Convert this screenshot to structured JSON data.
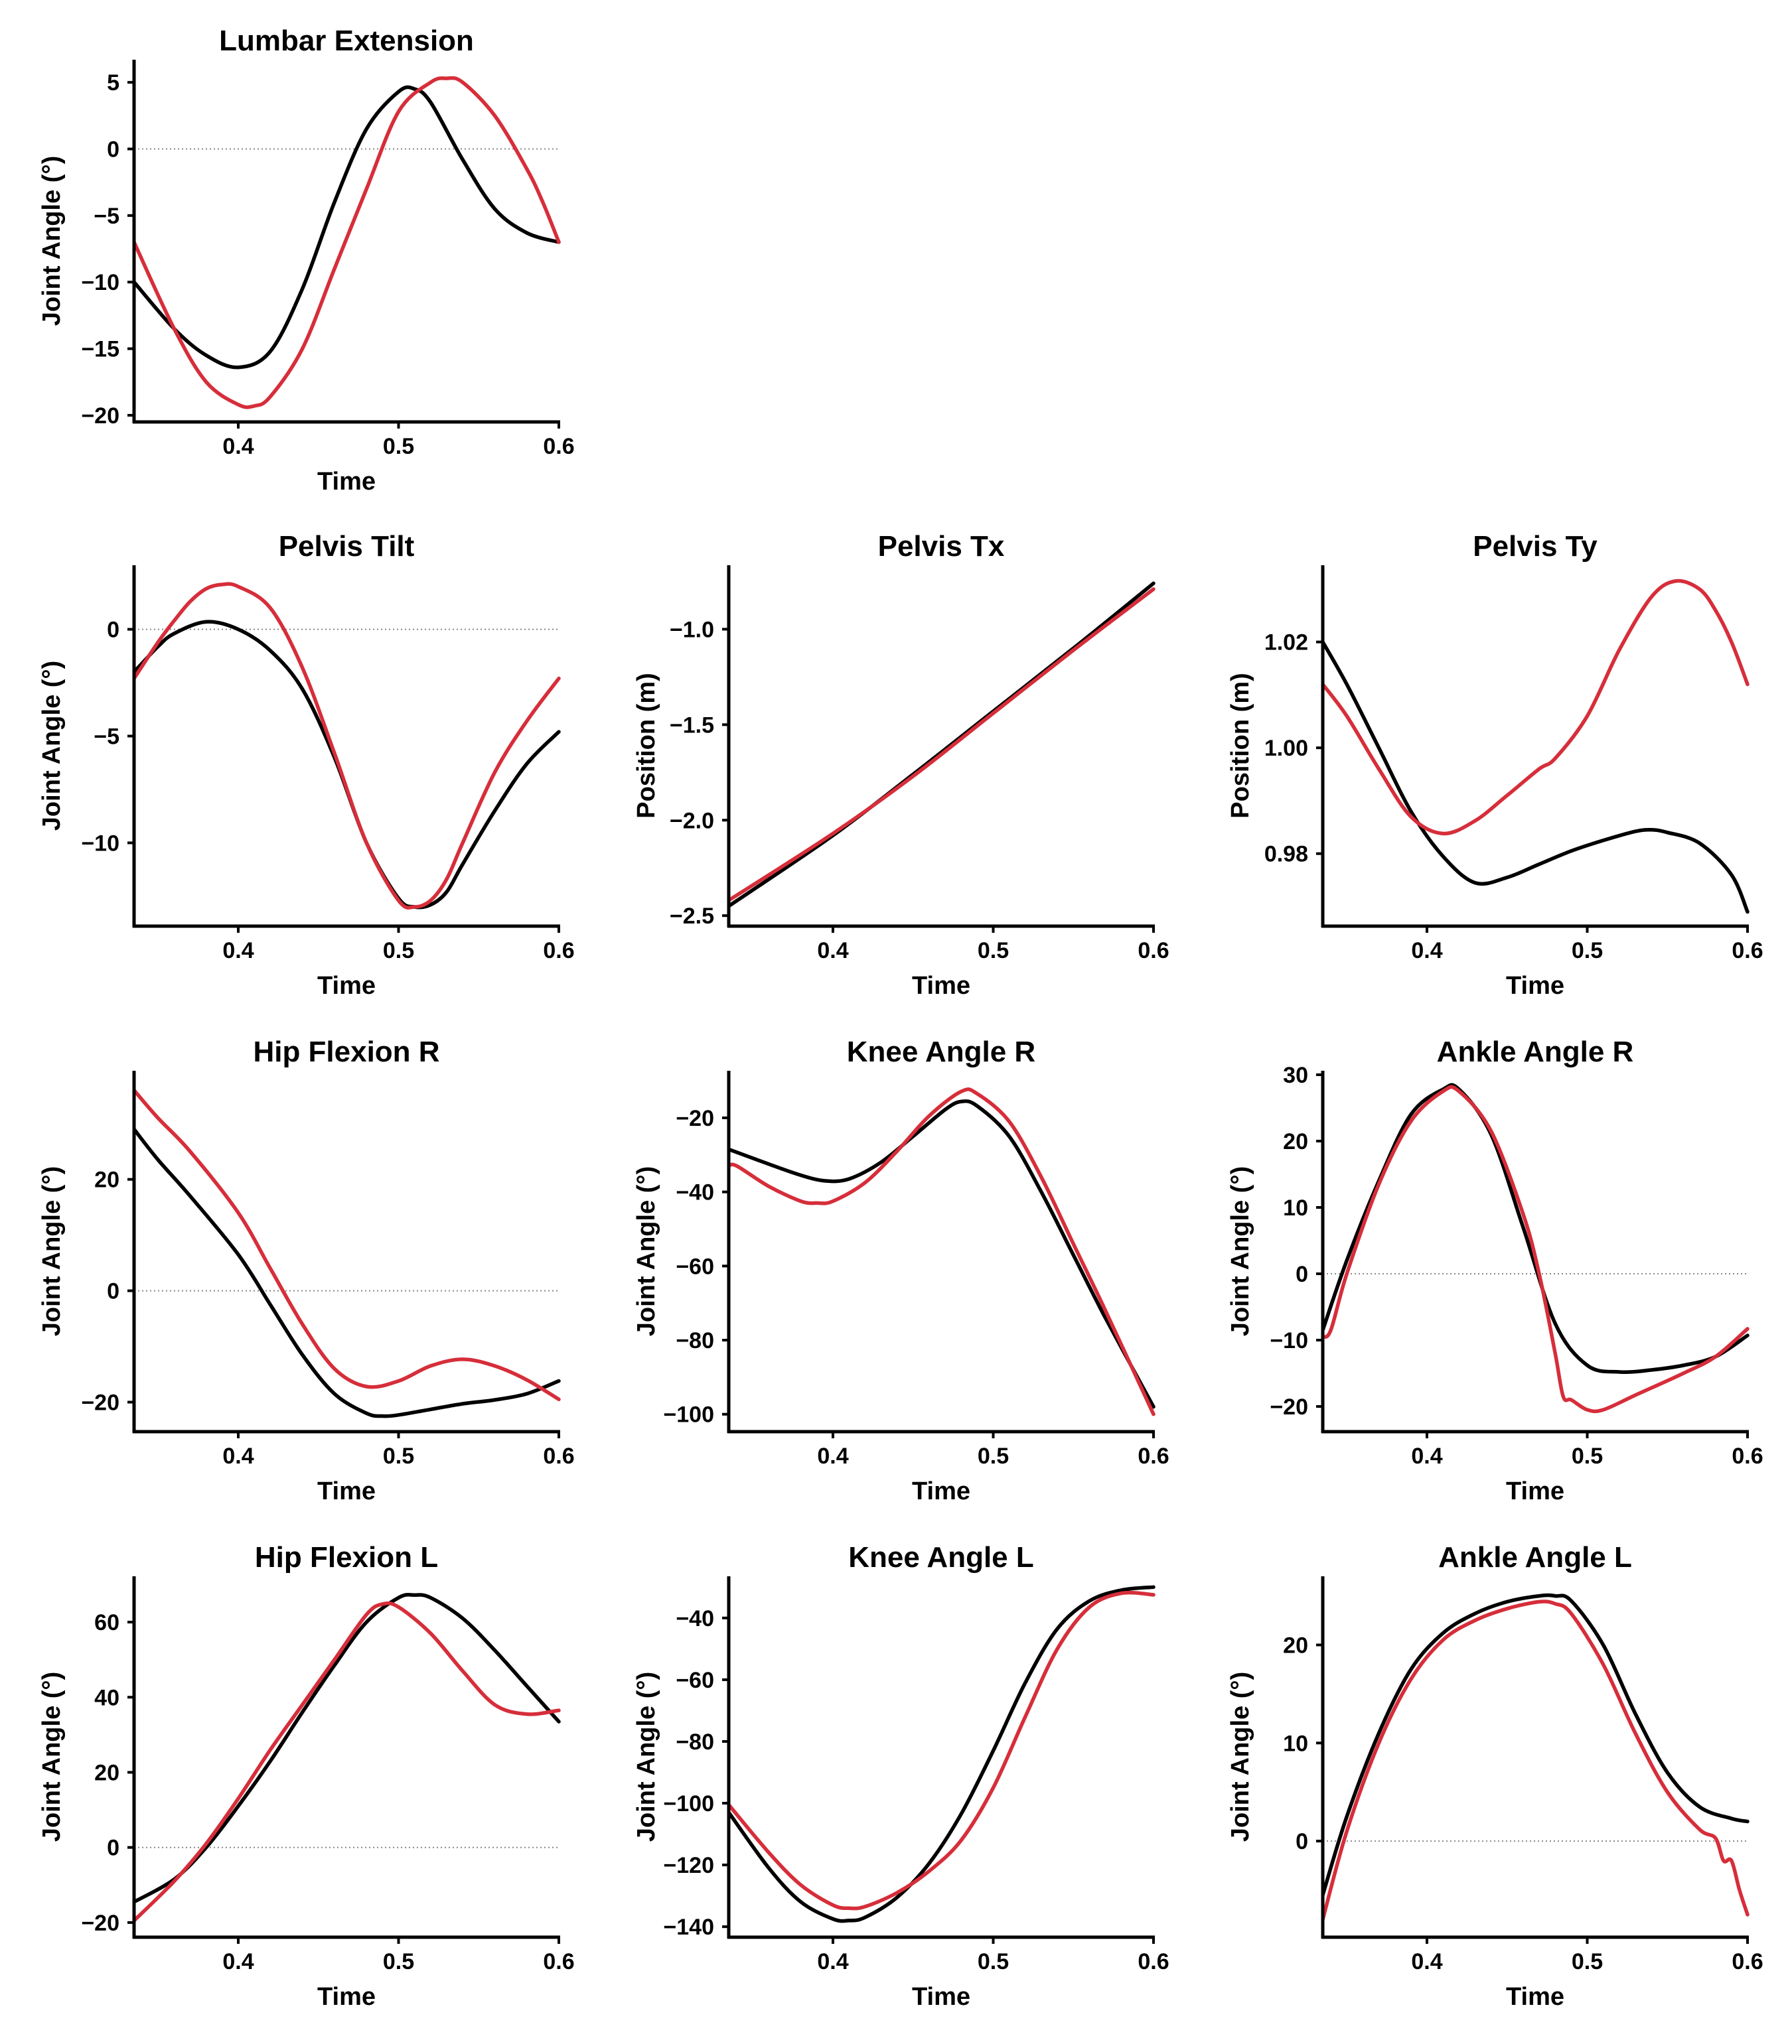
{
  "chart_data": [
    {
      "type": "line",
      "title": "Lumbar Extension",
      "xlabel": "Time",
      "ylabel": "Joint Angle (°)",
      "xlim": [
        0.335,
        0.6
      ],
      "ylim": [
        -20.5,
        6.7
      ],
      "xticks": [
        0.4,
        0.5,
        0.6
      ],
      "xtick_labels": [
        "0.4",
        "0.5",
        "0.6"
      ],
      "yticks": [
        5,
        0,
        -5,
        -10,
        -15,
        -20
      ],
      "ytick_labels": [
        "5",
        "0",
        "−5",
        "−10",
        "−15",
        "−20"
      ],
      "zero_line": true,
      "series": [
        {
          "color": "#000000",
          "x": [
            0.335,
            0.36,
            0.38,
            0.4,
            0.42,
            0.44,
            0.46,
            0.48,
            0.5,
            0.51,
            0.52,
            0.54,
            0.56,
            0.58,
            0.6
          ],
          "y": [
            -10,
            -13.5,
            -15.5,
            -16.4,
            -15.2,
            -10.5,
            -4,
            1.5,
            4.3,
            4.5,
            3.5,
            -0.8,
            -4.5,
            -6.3,
            -7
          ]
        },
        {
          "color": "#d62e3a",
          "x": [
            0.335,
            0.36,
            0.38,
            0.4,
            0.41,
            0.42,
            0.44,
            0.46,
            0.48,
            0.5,
            0.52,
            0.53,
            0.54,
            0.56,
            0.58,
            0.59,
            0.6
          ],
          "y": [
            -7,
            -13.5,
            -17.5,
            -19.2,
            -19.3,
            -18.6,
            -15,
            -9,
            -3,
            2.8,
            5,
            5.3,
            5,
            2.5,
            -1.5,
            -4,
            -7
          ]
        }
      ]
    },
    {
      "type": "line",
      "title": "Pelvis Tilt",
      "xlabel": "Time",
      "ylabel": "Joint Angle (°)",
      "xlim": [
        0.335,
        0.6
      ],
      "ylim": [
        -13.9,
        3.0
      ],
      "xticks": [
        0.4,
        0.5,
        0.6
      ],
      "xtick_labels": [
        "0.4",
        "0.5",
        "0.6"
      ],
      "yticks": [
        0,
        -5,
        -10
      ],
      "ytick_labels": [
        "0",
        "−5",
        "−10"
      ],
      "zero_line": true,
      "series": [
        {
          "color": "#000000",
          "x": [
            0.335,
            0.35,
            0.36,
            0.38,
            0.4,
            0.42,
            0.44,
            0.46,
            0.48,
            0.5,
            0.51,
            0.52,
            0.53,
            0.54,
            0.56,
            0.58,
            0.6
          ],
          "y": [
            -2,
            -0.8,
            -0.2,
            0.35,
            0,
            -1,
            -2.8,
            -6,
            -10,
            -12.6,
            -13,
            -12.9,
            -12.3,
            -11,
            -8.5,
            -6.3,
            -4.8
          ]
        },
        {
          "color": "#d62e3a",
          "x": [
            0.335,
            0.35,
            0.36,
            0.37,
            0.38,
            0.39,
            0.4,
            0.42,
            0.44,
            0.46,
            0.48,
            0.5,
            0.51,
            0.52,
            0.53,
            0.54,
            0.56,
            0.58,
            0.6
          ],
          "y": [
            -2.3,
            -0.6,
            0.4,
            1.3,
            1.9,
            2.1,
            2,
            1,
            -1.8,
            -5.8,
            -10,
            -12.7,
            -13,
            -12.7,
            -11.7,
            -10,
            -6.7,
            -4.3,
            -2.3
          ]
        }
      ]
    },
    {
      "type": "line",
      "title": "Pelvis Tx",
      "xlabel": "Time",
      "ylabel": "Position (m)",
      "xlim": [
        0.335,
        0.6
      ],
      "ylim": [
        -2.555,
        -0.665
      ],
      "xticks": [
        0.4,
        0.5,
        0.6
      ],
      "xtick_labels": [
        "0.4",
        "0.5",
        "0.6"
      ],
      "yticks": [
        -1.0,
        -1.5,
        -2.0,
        -2.5
      ],
      "ytick_labels": [
        "−1.0",
        "−1.5",
        "−2.0",
        "−2.5"
      ],
      "zero_line": false,
      "series": [
        {
          "color": "#000000",
          "x": [
            0.335,
            0.4,
            0.45,
            0.5,
            0.55,
            0.6
          ],
          "y": [
            -2.45,
            -2.08,
            -1.76,
            -1.43,
            -1.1,
            -0.76
          ]
        },
        {
          "color": "#d62e3a",
          "x": [
            0.335,
            0.4,
            0.45,
            0.5,
            0.55,
            0.6
          ],
          "y": [
            -2.42,
            -2.07,
            -1.77,
            -1.44,
            -1.11,
            -0.79
          ]
        }
      ]
    },
    {
      "type": "line",
      "title": "Pelvis Ty",
      "xlabel": "Time",
      "ylabel": "Position (m)",
      "xlim": [
        0.335,
        0.6
      ],
      "ylim": [
        0.9663,
        1.0345
      ],
      "xticks": [
        0.4,
        0.5,
        0.6
      ],
      "xtick_labels": [
        "0.4",
        "0.5",
        "0.6"
      ],
      "yticks": [
        1.02,
        1.0,
        0.98
      ],
      "ytick_labels": [
        "1.02",
        "1.00",
        "0.98"
      ],
      "zero_line": false,
      "series": [
        {
          "color": "#000000",
          "x": [
            0.335,
            0.35,
            0.37,
            0.39,
            0.41,
            0.43,
            0.45,
            0.47,
            0.49,
            0.51,
            0.53,
            0.54,
            0.55,
            0.57,
            0.59,
            0.6
          ],
          "y": [
            1.02,
            1.012,
            1.0,
            0.988,
            0.9795,
            0.9745,
            0.9755,
            0.978,
            0.9805,
            0.9825,
            0.9842,
            0.9845,
            0.984,
            0.982,
            0.976,
            0.969
          ]
        },
        {
          "color": "#d62e3a",
          "x": [
            0.335,
            0.35,
            0.37,
            0.39,
            0.41,
            0.43,
            0.45,
            0.47,
            0.48,
            0.5,
            0.52,
            0.54,
            0.555,
            0.57,
            0.58,
            0.59,
            0.6
          ],
          "y": [
            1.012,
            1.006,
            0.996,
            0.987,
            0.9838,
            0.9862,
            0.991,
            0.996,
            0.998,
            1.006,
            1.0185,
            1.0285,
            1.0315,
            1.03,
            1.026,
            1.02,
            1.012
          ]
        }
      ]
    },
    {
      "type": "line",
      "title": "Hip Flexion R",
      "xlabel": "Time",
      "ylabel": "Joint Angle (°)",
      "xlim": [
        0.335,
        0.6
      ],
      "ylim": [
        -25.3,
        39.5
      ],
      "xticks": [
        0.4,
        0.5,
        0.6
      ],
      "xtick_labels": [
        "0.4",
        "0.5",
        "0.6"
      ],
      "yticks": [
        20,
        0,
        -20
      ],
      "ytick_labels": [
        "20",
        "0",
        "−20"
      ],
      "zero_line": true,
      "series": [
        {
          "color": "#000000",
          "x": [
            0.335,
            0.35,
            0.37,
            0.4,
            0.42,
            0.44,
            0.46,
            0.48,
            0.49,
            0.5,
            0.52,
            0.54,
            0.56,
            0.58,
            0.6
          ],
          "y": [
            29,
            23.5,
            17,
            6.5,
            -2.5,
            -11.5,
            -18.5,
            -22,
            -22.5,
            -22.3,
            -21.3,
            -20.3,
            -19.6,
            -18.5,
            -16.2
          ]
        },
        {
          "color": "#d62e3a",
          "x": [
            0.335,
            0.35,
            0.37,
            0.4,
            0.42,
            0.44,
            0.46,
            0.48,
            0.5,
            0.52,
            0.54,
            0.56,
            0.58,
            0.6
          ],
          "y": [
            36,
            31,
            25,
            14,
            4,
            -6,
            -14,
            -17.2,
            -16.2,
            -13.5,
            -12.3,
            -13.5,
            -16,
            -19.5
          ]
        }
      ]
    },
    {
      "type": "line",
      "title": "Knee Angle R",
      "xlabel": "Time",
      "ylabel": "Joint Angle (°)",
      "xlim": [
        0.335,
        0.6
      ],
      "ylim": [
        -104.7,
        -7.3
      ],
      "xticks": [
        0.4,
        0.5,
        0.6
      ],
      "xtick_labels": [
        "0.4",
        "0.5",
        "0.6"
      ],
      "yticks": [
        -20,
        -40,
        -60,
        -80,
        -100
      ],
      "ytick_labels": [
        "−20",
        "−40",
        "−60",
        "−80",
        "−100"
      ],
      "zero_line": false,
      "series": [
        {
          "color": "#000000",
          "x": [
            0.335,
            0.36,
            0.38,
            0.395,
            0.41,
            0.43,
            0.45,
            0.47,
            0.48,
            0.49,
            0.51,
            0.53,
            0.55,
            0.57,
            0.6
          ],
          "y": [
            -28.5,
            -32.5,
            -35.5,
            -37,
            -36.5,
            -32,
            -25,
            -17.8,
            -15.6,
            -16.8,
            -25,
            -40,
            -57,
            -74,
            -98
          ]
        },
        {
          "color": "#d62e3a",
          "x": [
            0.335,
            0.34,
            0.36,
            0.38,
            0.39,
            0.4,
            0.42,
            0.44,
            0.46,
            0.48,
            0.49,
            0.51,
            0.53,
            0.55,
            0.57,
            0.6
          ],
          "y": [
            -33,
            -33,
            -38.5,
            -42.5,
            -43,
            -42.5,
            -37.5,
            -29,
            -19.5,
            -12.9,
            -13.5,
            -21,
            -36,
            -54,
            -72,
            -100
          ]
        }
      ]
    },
    {
      "type": "line",
      "title": "Ankle Angle R",
      "xlabel": "Time",
      "ylabel": "Joint Angle (°)",
      "xlim": [
        0.335,
        0.6
      ],
      "ylim": [
        -23.8,
        30.6
      ],
      "xticks": [
        0.4,
        0.5,
        0.6
      ],
      "xtick_labels": [
        "0.4",
        "0.5",
        "0.6"
      ],
      "yticks": [
        30,
        20,
        10,
        0,
        -10,
        -20
      ],
      "ytick_labels": [
        "30",
        "20",
        "10",
        "0",
        "−10",
        "−20"
      ],
      "zero_line": true,
      "series": [
        {
          "color": "#000000",
          "x": [
            0.335,
            0.35,
            0.37,
            0.39,
            0.41,
            0.42,
            0.44,
            0.46,
            0.48,
            0.5,
            0.52,
            0.54,
            0.56,
            0.58,
            0.6
          ],
          "y": [
            -8.5,
            2,
            14,
            24,
            27.8,
            27.8,
            21,
            7,
            -7.5,
            -13.8,
            -14.8,
            -14.5,
            -13.8,
            -12.5,
            -9.3
          ]
        },
        {
          "color": "#d62e3a",
          "x": [
            0.335,
            0.34,
            0.35,
            0.37,
            0.39,
            0.41,
            0.42,
            0.44,
            0.46,
            0.47,
            0.48,
            0.485,
            0.49,
            0.5,
            0.51,
            0.53,
            0.56,
            0.58,
            0.6
          ],
          "y": [
            -9.5,
            -8.5,
            0,
            13.5,
            23,
            27.5,
            27.5,
            21.5,
            9,
            0,
            -12,
            -18.5,
            -19,
            -20.5,
            -20.5,
            -18.3,
            -15,
            -12.5,
            -8.3
          ]
        }
      ]
    },
    {
      "type": "line",
      "title": "Hip Flexion L",
      "xlabel": "Time",
      "ylabel": "Joint Angle (°)",
      "xlim": [
        0.335,
        0.6
      ],
      "ylim": [
        -23.9,
        72.2
      ],
      "xticks": [
        0.4,
        0.5,
        0.6
      ],
      "xtick_labels": [
        "0.4",
        "0.5",
        "0.6"
      ],
      "yticks": [
        60,
        40,
        20,
        0,
        -20
      ],
      "ytick_labels": [
        "60",
        "40",
        "20",
        "0",
        "−20"
      ],
      "zero_line": true,
      "series": [
        {
          "color": "#000000",
          "x": [
            0.335,
            0.36,
            0.38,
            0.4,
            0.42,
            0.44,
            0.46,
            0.48,
            0.5,
            0.51,
            0.52,
            0.54,
            0.56,
            0.58,
            0.6
          ],
          "y": [
            -14.5,
            -8.5,
            0,
            11,
            23,
            36,
            48.5,
            60,
            66.5,
            67.2,
            66.5,
            61,
            52.5,
            43,
            33.5
          ]
        },
        {
          "color": "#d62e3a",
          "x": [
            0.335,
            0.36,
            0.38,
            0.4,
            0.42,
            0.44,
            0.46,
            0.48,
            0.49,
            0.5,
            0.52,
            0.54,
            0.56,
            0.58,
            0.6
          ],
          "y": [
            -19.5,
            -9,
            1,
            13,
            26,
            38,
            50,
            62,
            64.8,
            64,
            57,
            47,
            38,
            35.5,
            36.5
          ]
        }
      ]
    },
    {
      "type": "line",
      "title": "Knee Angle L",
      "xlabel": "Time",
      "ylabel": "Joint Angle (°)",
      "xlim": [
        0.335,
        0.6
      ],
      "ylim": [
        -143.4,
        -26.5
      ],
      "xticks": [
        0.4,
        0.5,
        0.6
      ],
      "xtick_labels": [
        "0.4",
        "0.5",
        "0.6"
      ],
      "yticks": [
        -40,
        -60,
        -80,
        -100,
        -120,
        -140
      ],
      "ytick_labels": [
        "−40",
        "−60",
        "−80",
        "−100",
        "−120",
        "−140"
      ],
      "zero_line": false,
      "series": [
        {
          "color": "#000000",
          "x": [
            0.335,
            0.36,
            0.38,
            0.4,
            0.41,
            0.42,
            0.44,
            0.46,
            0.48,
            0.5,
            0.52,
            0.54,
            0.56,
            0.58,
            0.6
          ],
          "y": [
            -103,
            -121,
            -132,
            -137.5,
            -138,
            -137,
            -130.5,
            -119.5,
            -103.5,
            -83,
            -61,
            -43.5,
            -34.5,
            -31,
            -30
          ]
        },
        {
          "color": "#d62e3a",
          "x": [
            0.335,
            0.36,
            0.38,
            0.4,
            0.41,
            0.42,
            0.44,
            0.46,
            0.48,
            0.5,
            0.52,
            0.54,
            0.56,
            0.58,
            0.6
          ],
          "y": [
            -100.5,
            -116,
            -126.5,
            -133,
            -134,
            -133.5,
            -129,
            -122,
            -112,
            -95,
            -72,
            -50,
            -36.5,
            -32,
            -32.5
          ]
        }
      ]
    },
    {
      "type": "line",
      "title": "Ankle Angle L",
      "xlabel": "Time",
      "ylabel": "Joint Angle (°)",
      "xlim": [
        0.335,
        0.6
      ],
      "ylim": [
        -9.8,
        27.0
      ],
      "xticks": [
        0.4,
        0.5,
        0.6
      ],
      "xtick_labels": [
        "0.4",
        "0.5",
        "0.6"
      ],
      "yticks": [
        20,
        10,
        0
      ],
      "ytick_labels": [
        "20",
        "10",
        "0"
      ],
      "zero_line": true,
      "series": [
        {
          "color": "#000000",
          "x": [
            0.335,
            0.35,
            0.37,
            0.39,
            0.41,
            0.43,
            0.45,
            0.47,
            0.48,
            0.49,
            0.51,
            0.53,
            0.55,
            0.57,
            0.59,
            0.6
          ],
          "y": [
            -5.5,
            2.5,
            11,
            17.5,
            21.2,
            23.2,
            24.4,
            25,
            25,
            24.5,
            20,
            13,
            7,
            3.5,
            2.3,
            2
          ]
        },
        {
          "color": "#d62e3a",
          "x": [
            0.335,
            0.35,
            0.37,
            0.39,
            0.41,
            0.43,
            0.45,
            0.47,
            0.48,
            0.49,
            0.51,
            0.53,
            0.55,
            0.57,
            0.58,
            0.585,
            0.59,
            0.595,
            0.6
          ],
          "y": [
            -8,
            1,
            10,
            16.5,
            20.5,
            22.5,
            23.7,
            24.4,
            24.2,
            23.2,
            18,
            11,
            5,
            1.2,
            0.3,
            -2,
            -2,
            -5,
            -7.5
          ]
        }
      ]
    }
  ]
}
